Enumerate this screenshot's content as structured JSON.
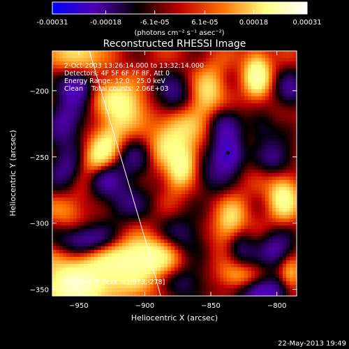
{
  "chart_data": {
    "type": "heatmap",
    "title": "Reconstructed RHESSI Image",
    "xlabel": "Heliocentric X (arcsec)",
    "ylabel": "Heliocentric Y (arcsec)",
    "xlim": [
      -970,
      -785
    ],
    "ylim": [
      -355,
      -170
    ],
    "x_ticks": [
      -950,
      -900,
      -850,
      -800
    ],
    "y_ticks": [
      -200,
      -250,
      -300,
      -350
    ],
    "colorbar": {
      "colormap": [
        "#0000ff",
        "#5000b0",
        "#000000",
        "#c00000",
        "#ff7000",
        "#ffff80",
        "#ffffff"
      ],
      "range": [
        -0.00031,
        0.00031
      ],
      "tick_labels": [
        "-0.00031",
        "-0.00018",
        "-6.1e-05",
        "6.1e-05",
        "0.00018",
        "0.00031"
      ],
      "tick_values": [
        -0.00031,
        -0.00018,
        -6.1e-05,
        6.1e-05,
        0.00018,
        0.00031
      ],
      "units": "(photons cm⁻² s⁻¹ asec⁻²)"
    },
    "annotations": [
      "2-Oct-2003 13:26:14.000 to 13:32:14.000",
      "Detectors: 4F 5F 6F 7F 8F, Att 0",
      "Energy Range: 12.0 - 25.0 keV",
      "Clean    Total counts: 2.06E+03"
    ],
    "peak_label": "Position of Peak = [-973,-278]",
    "limb_curve": {
      "x": [
        -942,
        -931,
        -920,
        -909,
        -898,
        -888
      ],
      "y": [
        -170,
        -207,
        -244,
        -281,
        -318,
        -355
      ]
    },
    "marker": {
      "x": -837,
      "y": -247
    },
    "blobs": [
      {
        "x": -952,
        "y": -172,
        "v": 0.75,
        "rx": 12,
        "ry": 10,
        "angle": 0
      },
      {
        "x": -952,
        "y": -196,
        "v": -0.9,
        "rx": 9,
        "ry": 9,
        "angle": 0
      },
      {
        "x": -960,
        "y": -225,
        "v": -0.7,
        "rx": 10,
        "ry": 14,
        "angle": 0
      },
      {
        "x": -960,
        "y": -262,
        "v": -0.6,
        "rx": 10,
        "ry": 11,
        "angle": 0
      },
      {
        "x": -960,
        "y": -290,
        "v": 0.35,
        "rx": 10,
        "ry": 8,
        "angle": 0
      },
      {
        "x": -945,
        "y": -313,
        "v": -0.8,
        "rx": 16,
        "ry": 8,
        "angle": 0
      },
      {
        "x": -940,
        "y": -340,
        "v": 0.85,
        "rx": 30,
        "ry": 14,
        "angle": 0
      },
      {
        "x": -932,
        "y": -245,
        "v": 0.9,
        "rx": 8,
        "ry": 20,
        "angle": -30
      },
      {
        "x": -933,
        "y": -265,
        "v": -0.6,
        "rx": 10,
        "ry": 9,
        "angle": 0
      },
      {
        "x": -918,
        "y": -208,
        "v": 0.75,
        "rx": 15,
        "ry": 10,
        "angle": -35
      },
      {
        "x": -915,
        "y": -283,
        "v": -0.5,
        "rx": 14,
        "ry": 12,
        "angle": 0
      },
      {
        "x": -905,
        "y": -252,
        "v": -0.55,
        "rx": 12,
        "ry": 12,
        "angle": 0
      },
      {
        "x": -900,
        "y": -325,
        "v": 0.9,
        "rx": 18,
        "ry": 10,
        "angle": 0
      },
      {
        "x": -880,
        "y": -235,
        "v": 0.8,
        "rx": 10,
        "ry": 20,
        "angle": -35
      },
      {
        "x": -878,
        "y": -205,
        "v": -0.65,
        "rx": 10,
        "ry": 12,
        "angle": 0
      },
      {
        "x": -872,
        "y": -258,
        "v": 0.85,
        "rx": 7,
        "ry": 12,
        "angle": -20
      },
      {
        "x": -870,
        "y": -310,
        "v": -0.5,
        "rx": 12,
        "ry": 12,
        "angle": 0
      },
      {
        "x": -868,
        "y": -345,
        "v": -0.5,
        "rx": 12,
        "ry": 10,
        "angle": 0
      },
      {
        "x": -852,
        "y": -202,
        "v": 0.6,
        "rx": 8,
        "ry": 15,
        "angle": -15
      },
      {
        "x": -850,
        "y": -265,
        "v": -0.4,
        "rx": 9,
        "ry": 10,
        "angle": 0
      },
      {
        "x": -835,
        "y": -300,
        "v": 0.7,
        "rx": 8,
        "ry": 12,
        "angle": -20
      },
      {
        "x": -840,
        "y": -225,
        "v": -0.5,
        "rx": 10,
        "ry": 10,
        "angle": 0
      },
      {
        "x": -837,
        "y": -248,
        "v": -1.0,
        "rx": 8,
        "ry": 10,
        "angle": 0
      },
      {
        "x": -828,
        "y": -320,
        "v": -0.5,
        "rx": 8,
        "ry": 12,
        "angle": 0
      },
      {
        "x": -830,
        "y": -340,
        "v": 0.6,
        "rx": 10,
        "ry": 8,
        "angle": 0
      },
      {
        "x": -815,
        "y": -188,
        "v": 0.95,
        "rx": 7,
        "ry": 12,
        "angle": 0
      },
      {
        "x": -812,
        "y": -228,
        "v": -0.4,
        "rx": 8,
        "ry": 8,
        "angle": 0
      },
      {
        "x": -800,
        "y": -250,
        "v": -0.6,
        "rx": 10,
        "ry": 10,
        "angle": 0
      },
      {
        "x": -795,
        "y": -280,
        "v": 0.85,
        "rx": 8,
        "ry": 12,
        "angle": 0
      },
      {
        "x": -800,
        "y": -320,
        "v": -0.7,
        "rx": 10,
        "ry": 10,
        "angle": 0
      },
      {
        "x": -810,
        "y": -352,
        "v": -0.9,
        "rx": 14,
        "ry": 8,
        "angle": 0
      },
      {
        "x": -790,
        "y": -200,
        "v": -0.6,
        "rx": 8,
        "ry": 10,
        "angle": 0
      },
      {
        "x": -790,
        "y": -340,
        "v": 0.6,
        "rx": 6,
        "ry": 10,
        "angle": 0
      },
      {
        "x": -955,
        "y": -350,
        "v": 0.7,
        "rx": 12,
        "ry": 8,
        "angle": 0
      }
    ]
  },
  "footer": {
    "timestamp": "22-May-2013 19:49"
  }
}
